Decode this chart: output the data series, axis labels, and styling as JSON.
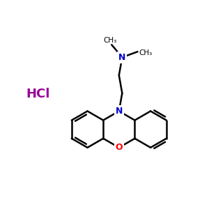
{
  "background_color": "#ffffff",
  "bond_color": "#000000",
  "N_color": "#0000cc",
  "O_color": "#ff0000",
  "HCl_color": "#990099",
  "HCl_text": "HCl",
  "CH3_label": "CH₃",
  "N_label": "N",
  "O_label": "O",
  "figsize": [
    3.0,
    3.0
  ],
  "dpi": 100
}
